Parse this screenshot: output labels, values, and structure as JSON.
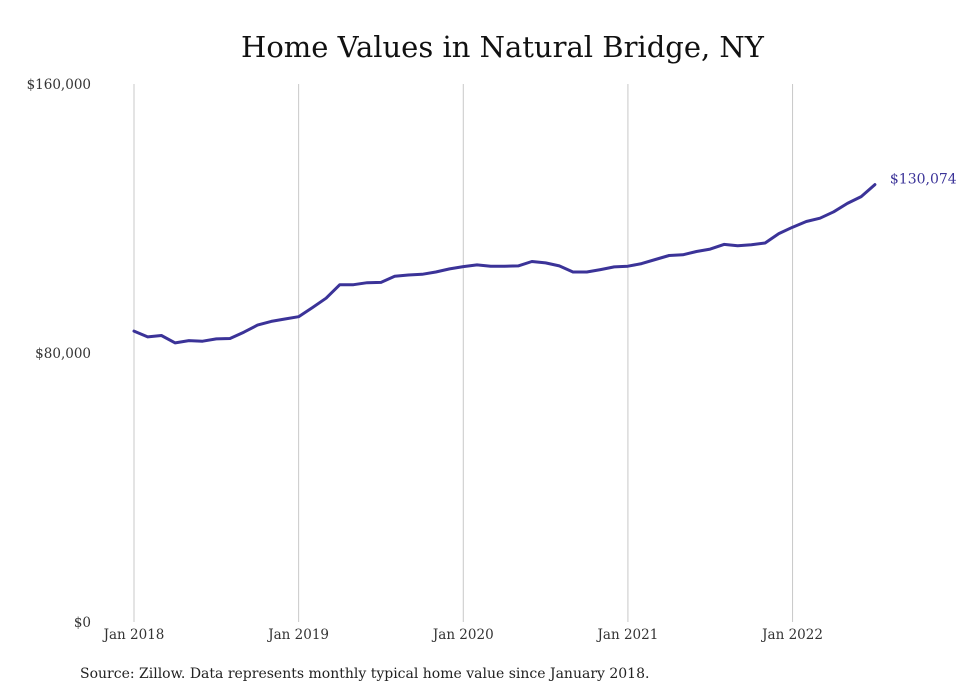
{
  "colors": {
    "line": "#3b3398",
    "grid": "#c8c8c8",
    "text": "#333333"
  },
  "chart_data": {
    "type": "line",
    "title": "Home Values in Natural Bridge, NY",
    "xlabel": "",
    "ylabel": "",
    "ylim": [
      0,
      160000
    ],
    "y_ticks": [
      {
        "value": 0,
        "label": "$0"
      },
      {
        "value": 80000,
        "label": "$80,000"
      },
      {
        "value": 160000,
        "label": "$160,000"
      }
    ],
    "x_ticks": [
      {
        "value": "2018-01",
        "label": "Jan 2018"
      },
      {
        "value": "2019-01",
        "label": "Jan 2019"
      },
      {
        "value": "2020-01",
        "label": "Jan 2020"
      },
      {
        "value": "2021-01",
        "label": "Jan 2021"
      },
      {
        "value": "2022-01",
        "label": "Jan 2022"
      }
    ],
    "grid": "vertical",
    "end_label": "$130,074",
    "series": [
      {
        "x": [
          "2018-01",
          "2018-02",
          "2018-03",
          "2018-04",
          "2018-05",
          "2018-06",
          "2018-07",
          "2018-08",
          "2018-09",
          "2018-10",
          "2018-11",
          "2018-12",
          "2019-01",
          "2019-02",
          "2019-03",
          "2019-04",
          "2019-05",
          "2019-06",
          "2019-07",
          "2019-08",
          "2019-09",
          "2019-10",
          "2019-11",
          "2019-12",
          "2020-01",
          "2020-02",
          "2020-03",
          "2020-04",
          "2020-05",
          "2020-06",
          "2020-07",
          "2020-08",
          "2020-09",
          "2020-10",
          "2020-11",
          "2020-12",
          "2021-01",
          "2021-02",
          "2021-03",
          "2021-04",
          "2021-05",
          "2021-06",
          "2021-07",
          "2021-08",
          "2021-09",
          "2021-10",
          "2021-11",
          "2021-12",
          "2022-01",
          "2022-02",
          "2022-03",
          "2022-04",
          "2022-05",
          "2022-06",
          "2022-07"
        ],
        "values": [
          86500,
          84800,
          85200,
          83000,
          83700,
          83500,
          84200,
          84300,
          86200,
          88300,
          89400,
          90100,
          90800,
          93500,
          96300,
          100300,
          100300,
          100900,
          101000,
          102800,
          103200,
          103400,
          104100,
          105000,
          105700,
          106200,
          105800,
          105800,
          105900,
          107200,
          106800,
          105900,
          104100,
          104100,
          104800,
          105600,
          105800,
          106600,
          107800,
          109000,
          109200,
          110200,
          110900,
          112300,
          111900,
          112200,
          112700,
          115500,
          117400,
          119100,
          120100,
          122000,
          124500,
          126500,
          130074
        ]
      }
    ]
  },
  "source": "Source: Zillow. Data represents monthly typical home value since January 2018."
}
